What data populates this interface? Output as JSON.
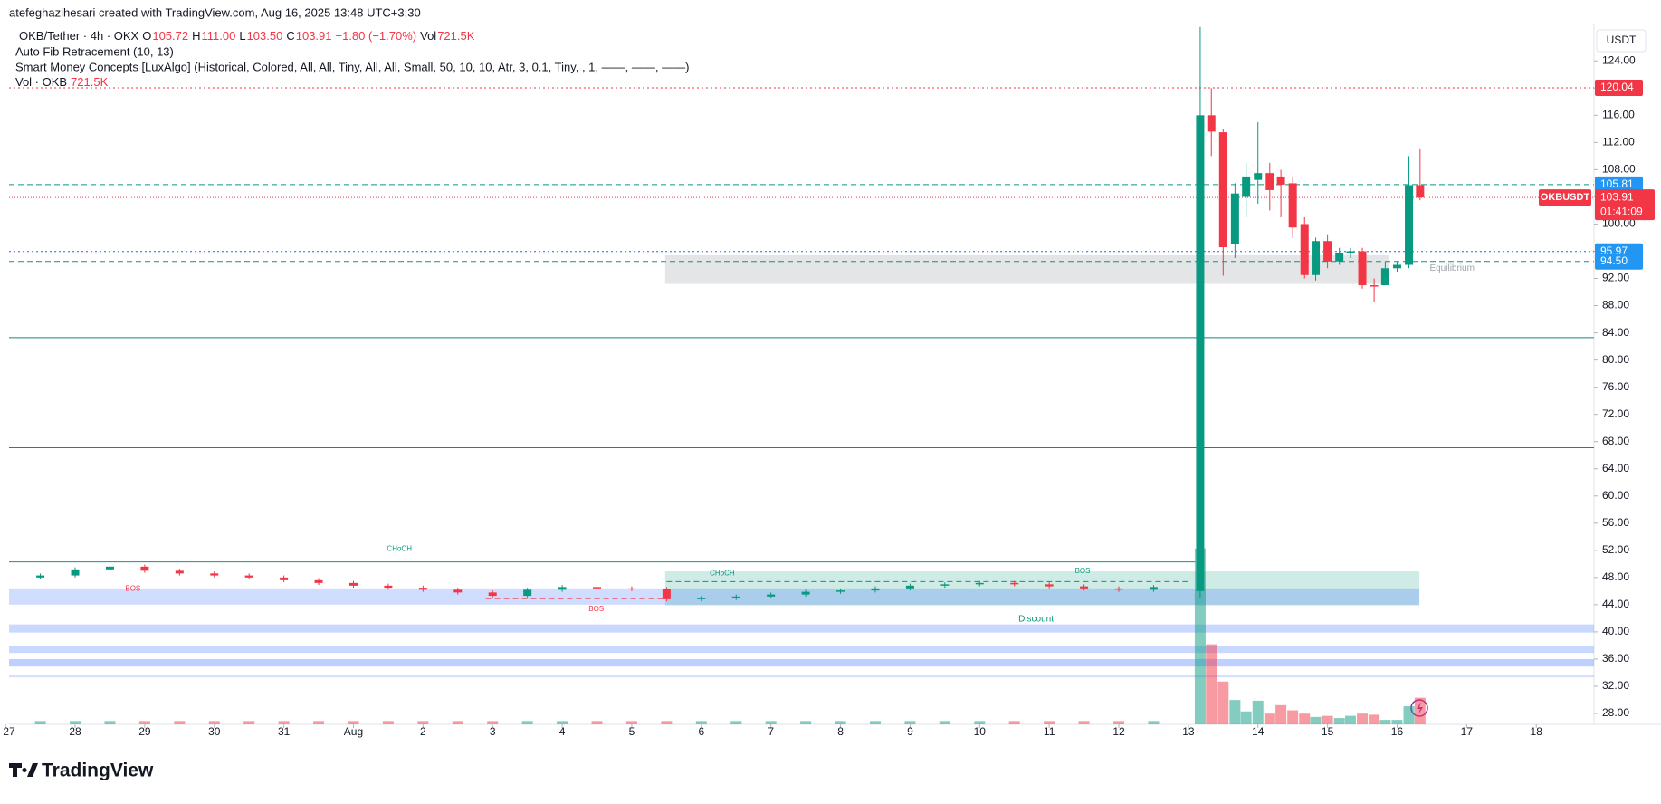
{
  "header": "atefeghazihesari created with TradingView.com, Aug 16, 2025 13:48 UTC+3:30",
  "legend": {
    "symbol": "OKB/Tether · 4h · OKX",
    "fields": [
      [
        "O",
        "105.72"
      ],
      [
        "H",
        "111.00"
      ],
      [
        "L",
        "103.50"
      ],
      [
        "C",
        "103.91"
      ]
    ],
    "change": "−1.80 (−1.70%)",
    "vol_key": "Vol",
    "vol": "721.5K",
    "indicators": [
      "Auto Fib Retracement (10, 13)",
      "Smart Money Concepts [LuxAlgo] (Historical, Colored, All, All, Tiny, All, All, Small, 50, 10, 10, Atr, 3, 0.1, Tiny, , 1, ——, ——, ——)"
    ],
    "vol_name": "Vol · OKB",
    "vol_value": "721.5K"
  },
  "footer": "TradingView",
  "chart_data": {
    "type": "candlestick",
    "currency": "USDT",
    "up_color": "#089981",
    "down_color": "#f23645",
    "x": [
      0.5,
      1,
      1.5,
      2,
      2.5,
      3,
      3.5,
      4,
      4.5,
      5,
      5.5,
      6,
      6.5,
      7,
      7.5,
      8,
      8.5,
      9,
      9.5,
      10,
      10.5,
      11,
      11.5,
      12,
      12.5,
      13,
      13.5,
      14,
      14.5,
      15,
      15.5,
      16,
      16.5,
      17.17,
      17.33,
      17.5,
      17.67,
      17.83,
      18,
      18.17,
      18.33,
      18.5,
      18.67,
      18.83,
      19,
      19.17,
      19.33,
      19.5,
      19.67,
      19.83,
      20,
      20.17,
      20.33
    ],
    "open": [
      48.0,
      48.3,
      49.2,
      49.6,
      49.0,
      48.6,
      48.3,
      48.0,
      47.6,
      47.2,
      46.8,
      46.5,
      46.2,
      45.8,
      45.3,
      46.2,
      46.6,
      46.4,
      46.3,
      44.8,
      45.0,
      45.2,
      45.5,
      45.9,
      46.1,
      46.4,
      46.8,
      47.0,
      47.2,
      47.0,
      46.7,
      46.4,
      46.2,
      46,
      116,
      113.5,
      97,
      104,
      106.5,
      107.5,
      107,
      106,
      100,
      92.5,
      97.5,
      94.5,
      95.8,
      96,
      91,
      91,
      93.5,
      94,
      105.72
    ],
    "high": [
      48.6,
      49.5,
      49.9,
      49.9,
      49.3,
      48.9,
      48.6,
      48.3,
      47.9,
      47.5,
      47.1,
      46.8,
      46.5,
      46.1,
      46.5,
      46.9,
      46.9,
      46.7,
      46.6,
      45.3,
      45.5,
      45.8,
      46.2,
      46.4,
      46.7,
      47.1,
      47.3,
      47.5,
      47.5,
      47.3,
      47.0,
      46.7,
      46.9,
      129,
      120,
      114,
      106,
      109,
      115,
      109,
      108,
      107,
      101,
      98,
      98.5,
      96.5,
      96.5,
      96.5,
      92,
      94.5,
      94.5,
      110,
      111.0
    ],
    "low": [
      47.7,
      48.0,
      48.9,
      48.7,
      48.3,
      48.0,
      47.7,
      47.3,
      46.9,
      46.5,
      46.2,
      45.9,
      45.5,
      45.0,
      45.0,
      45.9,
      46.1,
      46.0,
      44.5,
      44.5,
      44.7,
      44.9,
      45.2,
      45.6,
      45.8,
      46.1,
      46.5,
      46.7,
      46.7,
      46.4,
      46.1,
      45.9,
      45.9,
      45,
      110,
      92.4,
      95,
      101,
      103,
      102,
      101,
      98,
      92,
      91.7,
      93.5,
      94,
      95,
      90.5,
      88.5,
      91,
      93,
      93.5,
      103.5
    ],
    "close": [
      48.3,
      49.2,
      49.6,
      49.0,
      48.6,
      48.3,
      48.0,
      47.6,
      47.2,
      46.8,
      46.5,
      46.2,
      45.8,
      45.3,
      46.2,
      46.6,
      46.4,
      46.3,
      44.8,
      45.0,
      45.2,
      45.5,
      45.9,
      46.1,
      46.4,
      46.8,
      47.0,
      47.2,
      47.0,
      46.7,
      46.4,
      46.2,
      46.6,
      116,
      113.6,
      96.6,
      104.5,
      107,
      107.5,
      105,
      105.8,
      99.5,
      92.5,
      97.5,
      94.5,
      95.8,
      96,
      91,
      90.8,
      93.5,
      94,
      105.72,
      103.91
    ],
    "volume": [
      90,
      90,
      90,
      90,
      90,
      90,
      90,
      90,
      90,
      90,
      90,
      90,
      90,
      90,
      90,
      90,
      90,
      90,
      90,
      90,
      90,
      90,
      90,
      90,
      90,
      90,
      90,
      90,
      90,
      90,
      90,
      90,
      90,
      4770,
      2170,
      1160,
      660,
      350,
      640,
      290,
      520,
      380,
      290,
      200,
      230,
      170,
      230,
      290,
      260,
      120,
      120,
      490,
      721.5
    ],
    "vol_lim": [
      0,
      19000
    ],
    "xlim": [
      0.05,
      22.83
    ],
    "ylim": [
      26.4,
      129.5
    ],
    "xticks": [
      {
        "value": 0,
        "label": "27"
      },
      {
        "value": 1,
        "label": "28"
      },
      {
        "value": 2,
        "label": "29"
      },
      {
        "value": 3,
        "label": "30"
      },
      {
        "value": 4,
        "label": "31"
      },
      {
        "value": 5,
        "label": "Aug"
      },
      {
        "value": 6,
        "label": "2"
      },
      {
        "value": 7,
        "label": "3"
      },
      {
        "value": 8,
        "label": "4"
      },
      {
        "value": 9,
        "label": "5"
      },
      {
        "value": 10,
        "label": "6"
      },
      {
        "value": 11,
        "label": "7"
      },
      {
        "value": 12,
        "label": "8"
      },
      {
        "value": 13,
        "label": "9"
      },
      {
        "value": 14,
        "label": "10"
      },
      {
        "value": 15,
        "label": "11"
      },
      {
        "value": 16,
        "label": "12"
      },
      {
        "value": 17,
        "label": "13"
      },
      {
        "value": 18,
        "label": "14"
      },
      {
        "value": 19,
        "label": "15"
      },
      {
        "value": 20,
        "label": "16"
      },
      {
        "value": 21,
        "label": "17"
      },
      {
        "value": 22,
        "label": "18"
      }
    ],
    "yticks": [
      {
        "value": 28,
        "label": "28.00"
      },
      {
        "value": 32,
        "label": "32.00"
      },
      {
        "value": 36,
        "label": "36.00"
      },
      {
        "value": 40,
        "label": "40.00"
      },
      {
        "value": 44,
        "label": "44.00"
      },
      {
        "value": 48,
        "label": "48.00"
      },
      {
        "value": 52,
        "label": "52.00"
      },
      {
        "value": 56,
        "label": "56.00"
      },
      {
        "value": 60,
        "label": "60.00"
      },
      {
        "value": 64,
        "label": "64.00"
      },
      {
        "value": 68,
        "label": "68.00"
      },
      {
        "value": 72,
        "label": "72.00"
      },
      {
        "value": 76,
        "label": "76.00"
      },
      {
        "value": 80,
        "label": "80.00"
      },
      {
        "value": 84,
        "label": "84.00"
      },
      {
        "value": 88,
        "label": "88.00"
      },
      {
        "value": 92,
        "label": "92.00"
      },
      {
        "value": 96,
        "label": "96.00"
      },
      {
        "value": 100,
        "label": "100.00"
      },
      {
        "value": 104,
        "label": "104.00"
      },
      {
        "value": 108,
        "label": "108.00"
      },
      {
        "value": 112,
        "label": "112.00"
      },
      {
        "value": 116,
        "label": "116.00"
      },
      {
        "value": 120,
        "label": "120.00"
      },
      {
        "value": 124,
        "label": "124.00"
      }
    ],
    "grid": false,
    "levels": [
      {
        "value": 120.04,
        "label": "120.04",
        "color": "#f23645",
        "style": "dotted",
        "box": "#f23645"
      },
      {
        "value": 105.81,
        "label": "105.81",
        "color": "#089981",
        "style": "dashed",
        "box": "#2196f3"
      },
      {
        "value": 95.97,
        "label": "95.97",
        "color": "#2962ff",
        "style": "dotted",
        "box": "#2196f3"
      },
      {
        "value": 94.5,
        "label": "94.50",
        "color": "#089981",
        "style": "dashed",
        "box": "#2196f3"
      },
      {
        "value": 83.3,
        "color": "#0b8a8a",
        "style": "solid"
      },
      {
        "value": 67.1,
        "color": "#0b8a8a",
        "style": "solid"
      }
    ],
    "last": {
      "value": 103.91,
      "label": "103.91",
      "symbol": "OKBUSDT",
      "countdown": "01:41:09",
      "color": "#f23645"
    },
    "boxes": [
      {
        "x": [
          9.48,
          19.89
        ],
        "y": [
          91.2,
          95.4
        ],
        "color": "rgba(120,123,134,0.2)"
      },
      {
        "x": [
          9.48,
          20.32
        ],
        "y": [
          43.9,
          48.9
        ],
        "color": "rgba(8,153,129,0.2)"
      },
      {
        "x": [
          0.05,
          20.32
        ],
        "y": [
          44.0,
          46.4
        ],
        "color": "rgba(41,98,255,0.22)"
      },
      {
        "x": [
          0.05,
          22.83
        ],
        "y": [
          39.9,
          41.1
        ],
        "color": "rgba(41,98,255,0.25)"
      },
      {
        "x": [
          0.05,
          22.83
        ],
        "y": [
          36.9,
          37.9
        ],
        "color": "rgba(41,98,255,0.25)"
      },
      {
        "x": [
          0.05,
          22.83
        ],
        "y": [
          34.9,
          36.0
        ],
        "color": "rgba(41,98,255,0.3)"
      },
      {
        "x": [
          0.05,
          22.83
        ],
        "y": [
          33.3,
          33.7
        ],
        "color": "rgba(41,98,255,0.2)"
      }
    ],
    "segments": [
      {
        "x": [
          0.05,
          17.1
        ],
        "y": 50.3,
        "color": "#089981",
        "style": "solid"
      },
      {
        "x": [
          9.5,
          17.0
        ],
        "y": 47.4,
        "color": "#089981",
        "style": "dashed"
      },
      {
        "x": [
          6.9,
          9.5
        ],
        "y": 44.9,
        "color": "#f23645",
        "style": "dashed"
      }
    ],
    "annotations": [
      {
        "text": "CHoCH",
        "x": 5.66,
        "y": 52.2,
        "color": "#089981"
      },
      {
        "text": "CHoCH",
        "x": 10.3,
        "y": 48.6,
        "color": "#089981"
      },
      {
        "text": "BOS",
        "x": 15.48,
        "y": 48.9,
        "color": "#089981"
      },
      {
        "text": "BOS",
        "x": 1.83,
        "y": 46.3,
        "color": "#f23645"
      },
      {
        "text": "BOS",
        "x": 8.49,
        "y": 43.3,
        "color": "#f23645"
      },
      {
        "text": "Discount",
        "x": 14.81,
        "y": 41.9,
        "color": "#089981"
      },
      {
        "text": "Equilibrium",
        "x": 20.79,
        "y": 93.5,
        "color": "#a0a3ab"
      }
    ]
  }
}
